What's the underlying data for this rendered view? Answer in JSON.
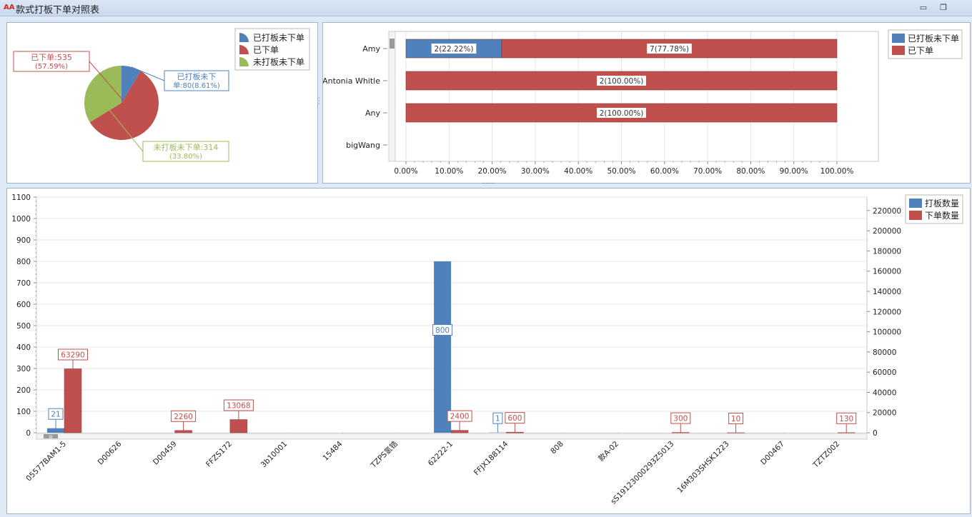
{
  "window": {
    "logo_text": "AA",
    "title": "款式打板下单对照表",
    "min_label": "▭",
    "restore_label": "❐"
  },
  "colors": {
    "blue": "#4f81bd",
    "red": "#c0504d",
    "green": "#9bbb59",
    "grid": "#e4e4e4"
  },
  "chart_data": [
    {
      "type": "pie",
      "legend_position": "top-right",
      "slices": [
        {
          "name": "已打板未下单",
          "value": 80,
          "percent": "8.61%",
          "color": "#4f81bd",
          "label_line1": "已打板未下",
          "label_line2": "单:80(8.61%)"
        },
        {
          "name": "已下单",
          "value": 535,
          "percent": "57.59%",
          "color": "#c0504d",
          "label_line1": "已下单:535",
          "label_line2": "(57.59%)"
        },
        {
          "name": "未打板未下单",
          "value": 314,
          "percent": "33.80%",
          "color": "#9bbb59",
          "label_line1": "未打板未下单:314",
          "label_line2": "(33.80%)"
        }
      ]
    },
    {
      "type": "bar",
      "orientation": "horizontal",
      "stacked_percent": true,
      "legend_position": "top-right",
      "categories": [
        "Amy",
        "Antonia Whitle",
        "Any",
        "bigWang"
      ],
      "series": [
        {
          "name": "已打板未下单",
          "color": "#4f81bd",
          "values": [
            2,
            0,
            0,
            0
          ],
          "labels": [
            "2(22.22%)",
            "",
            "",
            ""
          ]
        },
        {
          "name": "已下单",
          "color": "#c0504d",
          "values": [
            7,
            2,
            2,
            0
          ],
          "labels": [
            "7(77.78%)",
            "2(100.00%)",
            "2(100.00%)",
            ""
          ]
        }
      ],
      "x_ticks": [
        "0.00%",
        "10.00%",
        "20.00%",
        "30.00%",
        "40.00%",
        "50.00%",
        "60.00%",
        "70.00%",
        "80.00%",
        "90.00%",
        "100.00%"
      ],
      "xlim": [
        0,
        100
      ],
      "grid": true
    },
    {
      "type": "bar",
      "legend_position": "top-right",
      "categories": [
        "05577BAM1-5",
        "D00626",
        "D00459",
        "FFZS172",
        "3b10001",
        "15484",
        "TZPS氢锆",
        "62222-1",
        "FFJX188114",
        "808",
        "款A-02",
        "sS19123000293Z5013",
        "16M303SHSK1223",
        "D00467",
        "TZTZ002"
      ],
      "series": [
        {
          "name": "打板数量",
          "color": "#4f81bd",
          "axis": "left",
          "values": [
            21,
            0,
            0,
            0,
            0,
            0,
            0,
            800,
            1,
            0,
            0,
            0,
            0,
            0,
            0
          ],
          "labels": [
            "21",
            "",
            "",
            "",
            "",
            "",
            "",
            "800",
            "1",
            "",
            "",
            "",
            "",
            "",
            ""
          ]
        },
        {
          "name": "下单数量",
          "color": "#c0504d",
          "axis": "right",
          "values": [
            63290,
            0,
            2260,
            13068,
            0,
            0,
            0,
            2400,
            600,
            0,
            0,
            300,
            10,
            0,
            130
          ],
          "labels": [
            "63290",
            "",
            "2260",
            "13068",
            "",
            "",
            "",
            "2400",
            "600",
            "",
            "",
            "300",
            "10",
            "",
            "130"
          ]
        }
      ],
      "y_left_ticks": [
        "0",
        "100",
        "200",
        "300",
        "400",
        "500",
        "600",
        "700",
        "800",
        "900",
        "1000",
        "1100"
      ],
      "ylim_left": [
        0,
        1100
      ],
      "y_right_ticks": [
        "0",
        "20000",
        "40000",
        "60000",
        "80000",
        "100000",
        "120000",
        "140000",
        "160000",
        "180000",
        "200000",
        "220000"
      ],
      "ylim_right": [
        0,
        233333
      ],
      "grid": true,
      "scrollbar_thumb_label": "III"
    }
  ]
}
